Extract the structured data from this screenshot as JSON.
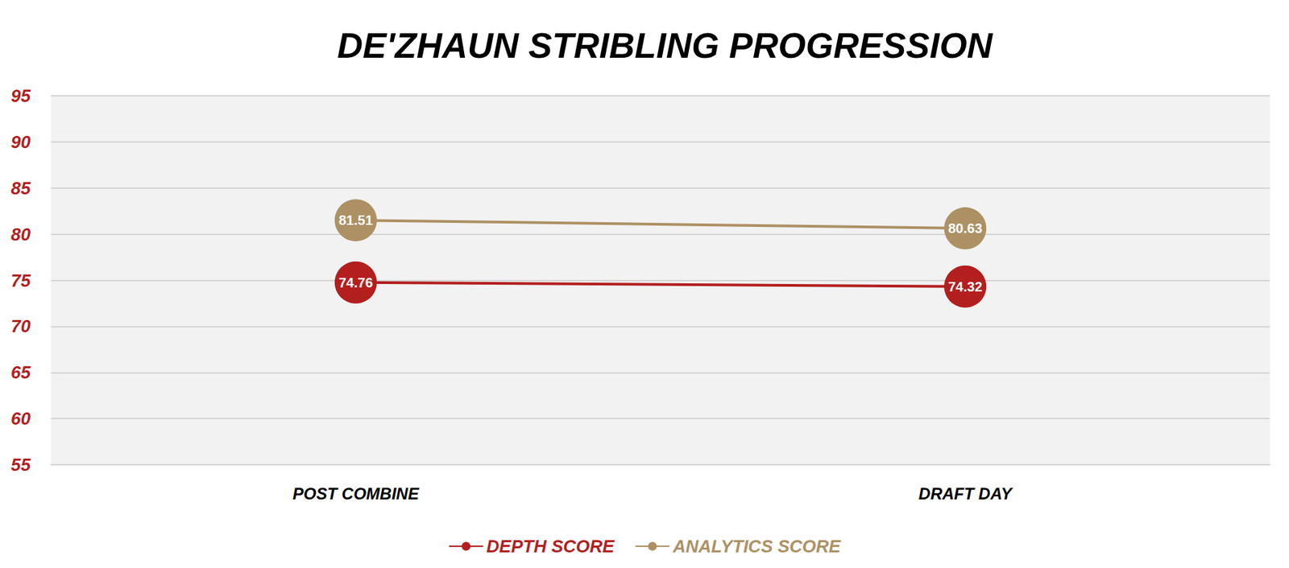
{
  "chart_data": {
    "type": "line",
    "title": "DE'ZHAUN STRIBLING PROGRESSION",
    "categories": [
      "POST COMBINE",
      "DRAFT DAY"
    ],
    "series": [
      {
        "name": "DEPTH SCORE",
        "color": "#b31f1f",
        "values": [
          74.76,
          74.32
        ]
      },
      {
        "name": "ANALYTICS SCORE",
        "color": "#ad9164",
        "values": [
          81.51,
          80.63
        ]
      }
    ],
    "ylim": [
      55,
      95
    ],
    "yticks": [
      55,
      60,
      65,
      70,
      75,
      80,
      85,
      90,
      95
    ],
    "grid": true,
    "data_labels": true,
    "legend": "bottom",
    "marker": "circle"
  }
}
